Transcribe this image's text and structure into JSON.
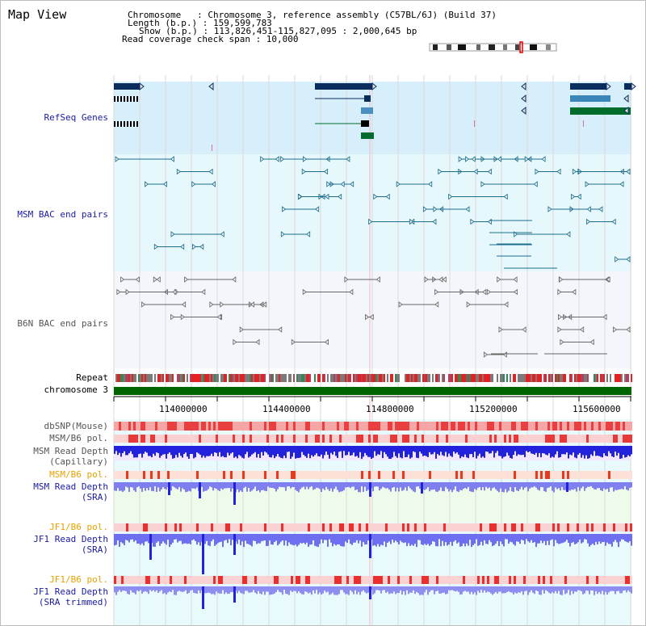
{
  "panel": {
    "title": "Map View"
  },
  "info": {
    "chromosome": "Chromosome   : Chromosome 3, reference assembly (C57BL/6J) (Build 37)",
    "length": "Length (b.p.) : 159,599,783",
    "show": "Show (b.p.) : 113,826,451-115,827,095 : 2,000,645 bp",
    "span": "Read coverage check span : 10,000"
  },
  "tracks": {
    "refseq": "RefSeq Genes",
    "msm_bac": "MSM BAC end pairs",
    "b6n_bac": "B6N BAC end pairs",
    "repeat": "Repeat",
    "chromosome": "chromosome 3",
    "dbsnp": "dbSNP(Mouse)",
    "msm_b6_pol_1": "MSM/B6 pol.",
    "msm_depth_cap_1": "MSM Read Depth",
    "msm_depth_cap_2": "(Capillary)",
    "msm_b6_pol_2": "MSM/B6 pol.",
    "msm_depth_sra_1": "MSM Read Depth",
    "msm_depth_sra_2": "(SRA)",
    "jf1_b6_pol_1": "JF1/B6 pol.",
    "jf1_depth_sra_1": "JF1 Read Depth",
    "jf1_depth_sra_2": "(SRA)",
    "jf1_b6_pol_2": "JF1/B6 pol.",
    "jf1_depth_trim_1": "JF1 Read Depth",
    "jf1_depth_trim_2": "(SRA trimmed)"
  },
  "axis": {
    "ticks": [
      "114000000",
      "114400000",
      "114800000",
      "115200000",
      "115600000"
    ]
  },
  "colors": {
    "label_blue": "#1a1aa6",
    "label_gray": "#555555",
    "label_orange": "#e8a000",
    "refseq_bg": "#d6effb",
    "bac_bg": "#e6f8fb",
    "b6n_bg": "#f3f7fb",
    "chromosome_bar": "#006400",
    "depth_blue": "#2222dd",
    "depth_light": "#7f7ff0"
  }
}
